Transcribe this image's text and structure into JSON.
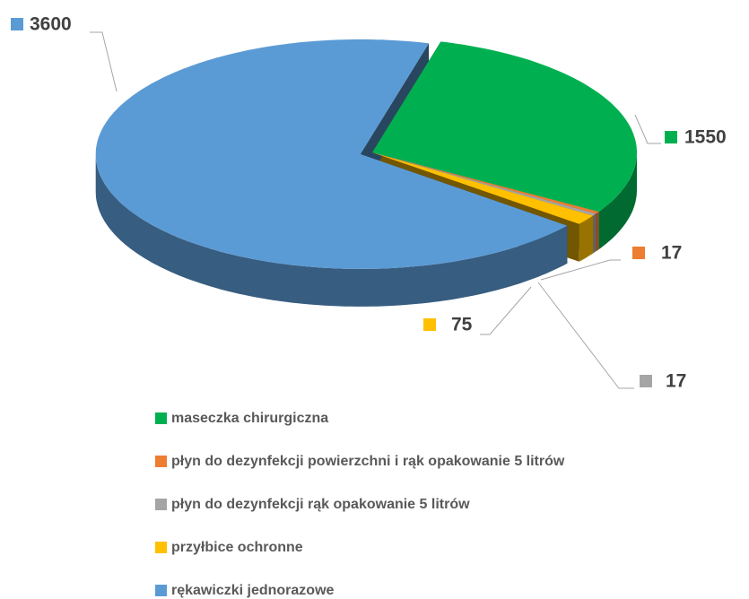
{
  "chart_data": {
    "type": "pie",
    "categories": [
      "maseczka chirurgiczna",
      "płyn do dezynfekcji powierzchni i rąk opakowanie 5 litrów",
      "płyn do dezynfekcji rąk opakowanie 5 litrów",
      "przyłbice ochronne",
      "rękawiczki jednorazowe"
    ],
    "values": [
      1550,
      17,
      17,
      75,
      3600
    ],
    "colors": [
      "#00b050",
      "#ed7d31",
      "#a5a5a5",
      "#ffc000",
      "#5b9bd5"
    ],
    "legend": "bottom"
  }
}
